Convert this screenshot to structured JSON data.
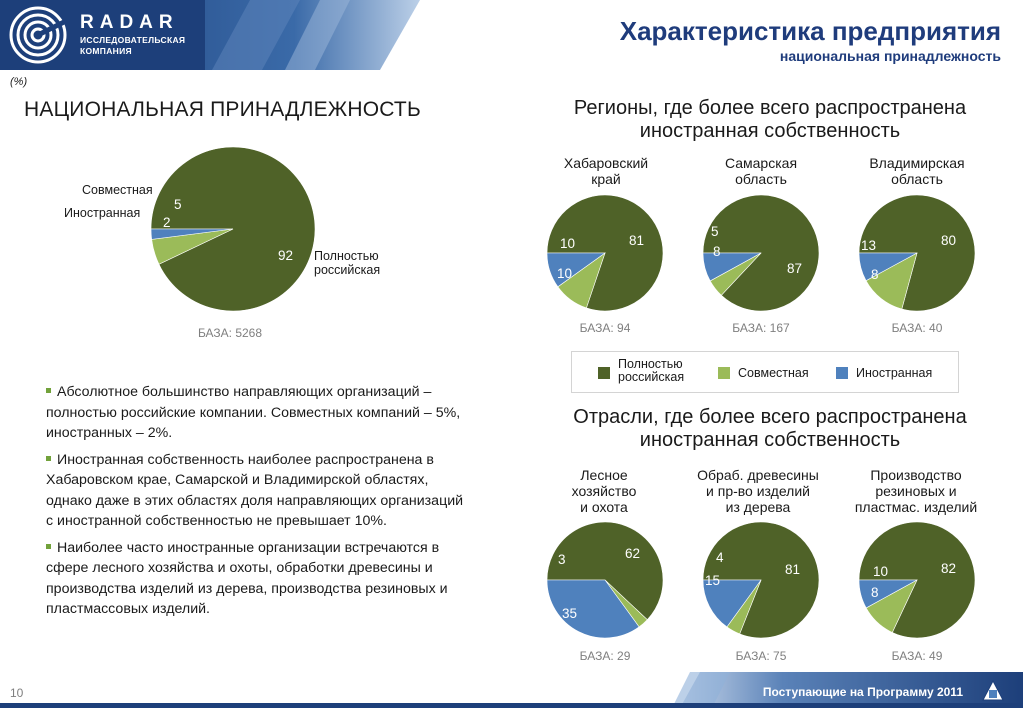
{
  "logo": {
    "name": "RADAR",
    "sub_line1": "ИССЛЕДОВАТЕЛЬСКАЯ",
    "sub_line2": "КОМПАНИЯ"
  },
  "header": {
    "title": "Характеристика предприятия",
    "subtitle": "национальная принадлежность"
  },
  "unit_label": "(%)",
  "left_title": "НАЦИОНАЛЬНАЯ ПРИНАДЛЕЖНОСТЬ",
  "regions_title_line1": "Регионы, где более всего распространена",
  "regions_title_line2": "иностранная собственность",
  "industries_title_line1": "Отрасли, где более всего распространена",
  "industries_title_line2": "иностранная собственность",
  "colors": {
    "russian": "#4f6228",
    "joint": "#9bbb59",
    "foreign": "#4f81bd"
  },
  "legend": {
    "russian_line1": "Полностью",
    "russian_line2": "российская",
    "joint": "Совместная",
    "foreign": "Иностранная"
  },
  "main_pie_labels": {
    "joint": "Совместная",
    "foreign": "Иностранная",
    "russian_line1": "Полностью",
    "russian_line2": "российская"
  },
  "chart_data": [
    {
      "type": "pie",
      "title": "НАЦИОНАЛЬНАЯ ПРИНАДЛЕЖНОСТЬ",
      "labels": [
        "Полностью российская",
        "Совместная",
        "Иностранная"
      ],
      "values": [
        92,
        5,
        2
      ],
      "base": "БАЗА: 5268"
    },
    {
      "type": "pie",
      "caption_lines": [
        "Хабаровский",
        "край"
      ],
      "labels": [
        "Полностью российская",
        "Совместная",
        "Иностранная"
      ],
      "values": [
        81,
        10,
        10
      ],
      "base": "БАЗА: 94"
    },
    {
      "type": "pie",
      "caption_lines": [
        "Самарская",
        "область"
      ],
      "labels": [
        "Полностью российская",
        "Совместная",
        "Иностранная"
      ],
      "values": [
        87,
        5,
        8
      ],
      "base": "БАЗА: 167"
    },
    {
      "type": "pie",
      "caption_lines": [
        "Владимирская",
        "область"
      ],
      "labels": [
        "Полностью российская",
        "Совместная",
        "Иностранная"
      ],
      "values": [
        80,
        13,
        8
      ],
      "base": "БАЗА: 40"
    },
    {
      "type": "pie",
      "caption_lines": [
        "Лесное",
        "хозяйство",
        "и охота"
      ],
      "labels": [
        "Полностью российская",
        "Совместная",
        "Иностранная"
      ],
      "values": [
        62,
        3,
        35
      ],
      "base": "БАЗА: 29"
    },
    {
      "type": "pie",
      "caption_lines": [
        "Обраб. древесины",
        "и пр-во изделий",
        "из дерева"
      ],
      "labels": [
        "Полностью российская",
        "Совместная",
        "Иностранная"
      ],
      "values": [
        81,
        4,
        15
      ],
      "base": "БАЗА: 75"
    },
    {
      "type": "pie",
      "caption_lines": [
        "Производство",
        "резиновых и",
        "пластмас. изделий"
      ],
      "labels": [
        "Полностью российская",
        "Совместная",
        "Иностранная"
      ],
      "values": [
        82,
        10,
        8
      ],
      "base": "БАЗА: 49"
    }
  ],
  "bullets": [
    "Абсолютное большинство направляющих организаций – полностью российские компании. Совместных компаний – 5%, иностранных – 2%.",
    "Иностранная собственность наиболее распространена в Хабаровском крае, Самарской и Владимирской областях, однако даже в этих областях доля направляющих организаций с иностранной собственностью не превышает 10%.",
    "Наиболее часто иностранные организации встречаются в сфере лесного хозяйства и охоты, обработки древесины и производства изделий из дерева, производства резиновых и пластмассовых изделий."
  ],
  "footer": {
    "page_number": "10",
    "text": "Поступающие на Программу 2011"
  }
}
